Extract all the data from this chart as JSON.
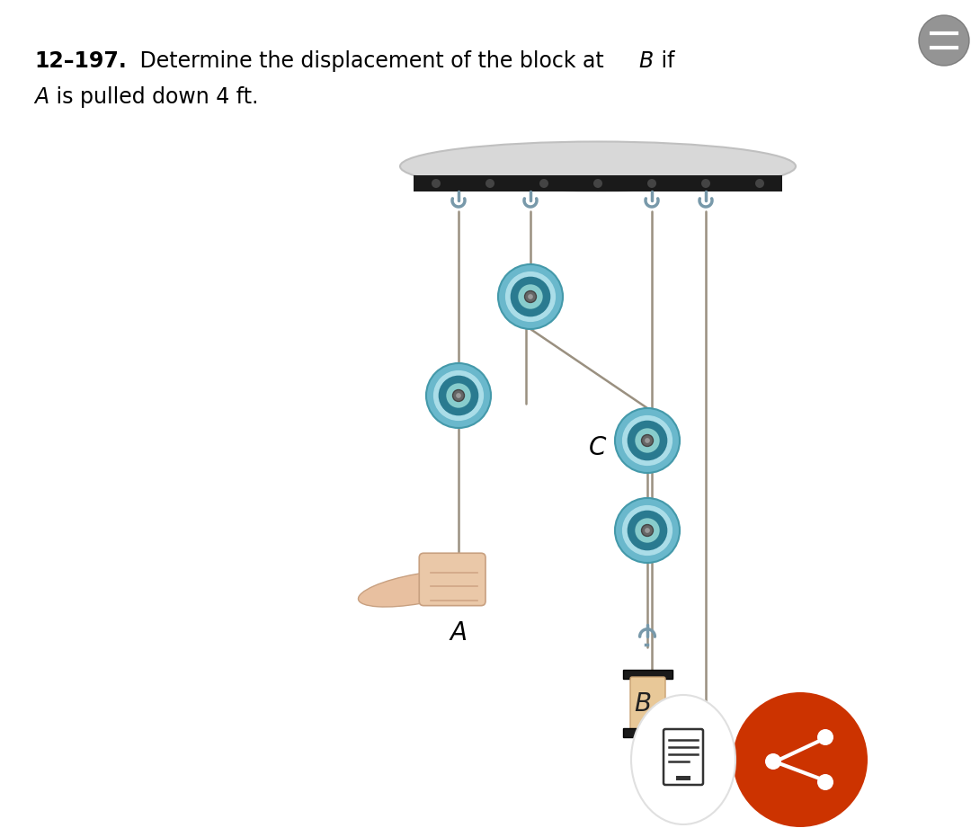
{
  "bg_color": "#ffffff",
  "ceiling_dark_color": "#1a1a1a",
  "ceiling_light_color": "#d8d8d8",
  "rope_color": "#9a9080",
  "rope_lw": 1.8,
  "pulley_outer": "#6ab8cc",
  "pulley_mid": "#88ccdd",
  "pulley_inner": "#2a7a90",
  "pulley_center": "#ccdddd",
  "hook_color": "#7899aa",
  "block_top_color": "#1a1a1a",
  "block_mid_color": "#e8c898",
  "block_bot_color": "#c8a878",
  "share_color": "#cc3300",
  "notes_bg": "#ffffff",
  "title_line1_bold": "12–197.",
  "title_line1_rest": " Determine the displacement of the block at ",
  "title_line1_B": "B",
  "title_line1_end": " if",
  "title_line2_A": "A",
  "title_line2_rest": " is pulled down 4 ft.",
  "label_A": "A",
  "label_C": "C",
  "label_B": "B",
  "fig_w": 10.8,
  "fig_h": 9.21
}
